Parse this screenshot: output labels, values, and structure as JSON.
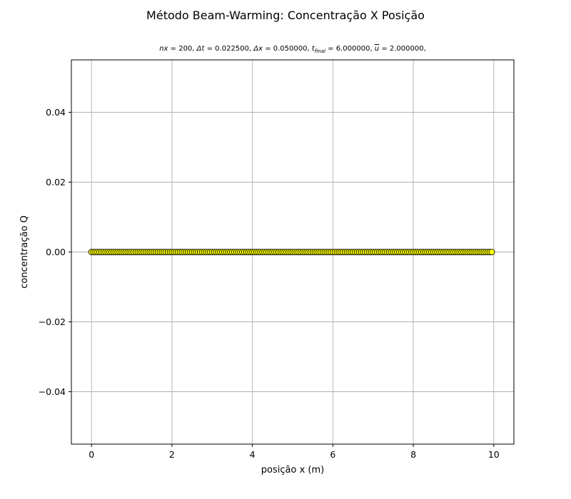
{
  "chart_data": {
    "type": "scatter",
    "title": "Método Beam-Warming: Concentração X Posição",
    "subtitle": {
      "nx_sym": "nx",
      "nx_val": "200",
      "dt_sym": "Δt",
      "dt_val": "0.022500",
      "dx_sym": "Δx",
      "dx_val": "0.050000",
      "tf_sym": "t",
      "tf_sub": "final",
      "tf_val": "6.000000",
      "u_sym": "u",
      "u_val": "2.000000"
    },
    "xlabel": "posição x (m)",
    "ylabel": "concentração Q",
    "xlim": [
      -0.5,
      10.5
    ],
    "ylim": [
      -0.055,
      0.055
    ],
    "xticks": [
      0,
      2,
      4,
      6,
      8,
      10
    ],
    "xtick_labels": [
      "0",
      "2",
      "4",
      "6",
      "8",
      "10"
    ],
    "yticks": [
      -0.04,
      -0.02,
      0.0,
      0.02,
      0.04
    ],
    "ytick_labels": [
      "−0.04",
      "−0.02",
      "0.00",
      "0.02",
      "0.04"
    ],
    "grid": true,
    "series": [
      {
        "x_start": 0.0,
        "x_step": 0.05,
        "count": 200,
        "y_constant": 0.0,
        "marker_color": "#ffff00",
        "marker_edge": "#000000"
      }
    ]
  }
}
